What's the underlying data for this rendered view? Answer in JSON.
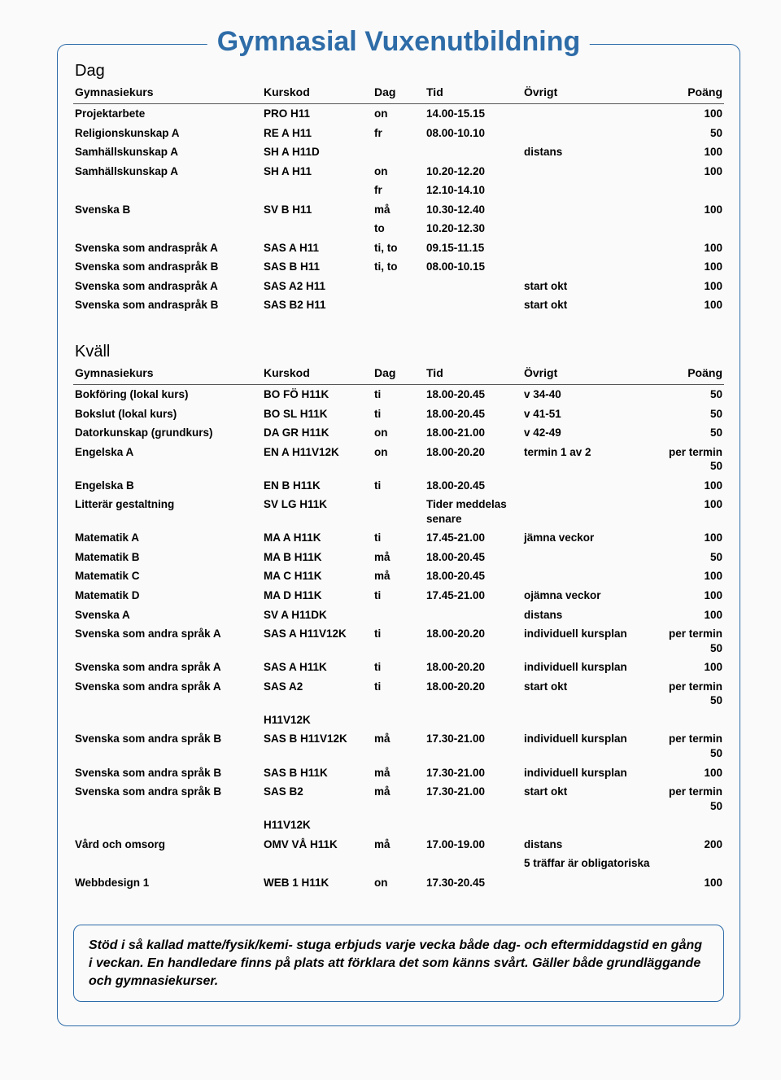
{
  "title": "Gymnasial Vuxenutbildning",
  "col_headers": {
    "kurs": "Gymnasiekurs",
    "kod": "Kurskod",
    "dag": "Dag",
    "tid": "Tid",
    "ovr": "Övrigt",
    "poang": "Poäng"
  },
  "section_dag_label": "Dag",
  "section_kvall_label": "Kväll",
  "dag_rows": [
    {
      "kurs": "Projektarbete",
      "kod": "PRO H11",
      "dag": "on",
      "tid": "14.00-15.15",
      "ovr": "",
      "poang": "100"
    },
    {
      "kurs": "Religionskunskap A",
      "kod": "RE A H11",
      "dag": "fr",
      "tid": "08.00-10.10",
      "ovr": "",
      "poang": "50"
    },
    {
      "kurs": "Samhällskunskap A",
      "kod": "SH A H11D",
      "dag": "",
      "tid": "",
      "ovr": "distans",
      "poang": "100"
    },
    {
      "kurs": "Samhällskunskap A",
      "kod": "SH A H11",
      "dag": "on",
      "tid": "10.20-12.20",
      "ovr": "",
      "poang": "100"
    },
    {
      "kurs": "",
      "kod": "",
      "dag": "fr",
      "tid": "12.10-14.10",
      "ovr": "",
      "poang": ""
    },
    {
      "kurs": "Svenska B",
      "kod": "SV B H11",
      "dag": "må",
      "tid": "10.30-12.40",
      "ovr": "",
      "poang": "100"
    },
    {
      "kurs": "",
      "kod": "",
      "dag": "to",
      "tid": "10.20-12.30",
      "ovr": "",
      "poang": ""
    },
    {
      "kurs": "Svenska som andraspråk A",
      "kod": "SAS A H11",
      "dag": "ti, to",
      "tid": "09.15-11.15",
      "ovr": "",
      "poang": "100"
    },
    {
      "kurs": "Svenska som andraspråk B",
      "kod": "SAS B H11",
      "dag": "ti, to",
      "tid": "08.00-10.15",
      "ovr": "",
      "poang": "100"
    },
    {
      "kurs": "Svenska som andraspråk A",
      "kod": "SAS A2 H11",
      "dag": "",
      "tid": "",
      "ovr": "start okt",
      "poang": "100"
    },
    {
      "kurs": "Svenska som andraspråk B",
      "kod": "SAS B2 H11",
      "dag": "",
      "tid": "",
      "ovr": "start okt",
      "poang": "100"
    }
  ],
  "kvall_rows": [
    {
      "kurs": "Bokföring (lokal kurs)",
      "kod": "BO FÖ H11K",
      "dag": "ti",
      "tid": "18.00-20.45",
      "ovr": "v 34-40",
      "poang": "50"
    },
    {
      "kurs": "Bokslut (lokal kurs)",
      "kod": "BO SL H11K",
      "dag": "ti",
      "tid": "18.00-20.45",
      "ovr": "v 41-51",
      "poang": "50"
    },
    {
      "kurs": "Datorkunskap (grundkurs)",
      "kod": "DA GR H11K",
      "dag": "on",
      "tid": "18.00-21.00",
      "ovr": "v 42-49",
      "poang": "50"
    },
    {
      "kurs": "Engelska A",
      "kod": "EN A H11V12K",
      "dag": "on",
      "tid": "18.00-20.20",
      "ovr": "termin 1 av 2",
      "poang": "per termin 50"
    },
    {
      "kurs": "Engelska B",
      "kod": "EN B H11K",
      "dag": "ti",
      "tid": "18.00-20.45",
      "ovr": "",
      "poang": "100"
    },
    {
      "kurs": "Litterär gestaltning",
      "kod": "SV LG H11K",
      "dag": "",
      "tid": "Tider meddelas senare",
      "ovr": "",
      "poang": "100"
    },
    {
      "kurs": "Matematik A",
      "kod": "MA A H11K",
      "dag": "ti",
      "tid": "17.45-21.00",
      "ovr": "jämna veckor",
      "poang": "100"
    },
    {
      "kurs": "Matematik B",
      "kod": "MA B H11K",
      "dag": "må",
      "tid": "18.00-20.45",
      "ovr": "",
      "poang": "50"
    },
    {
      "kurs": "Matematik C",
      "kod": "MA C H11K",
      "dag": "må",
      "tid": "18.00-20.45",
      "ovr": "",
      "poang": "100"
    },
    {
      "kurs": "Matematik D",
      "kod": "MA D H11K",
      "dag": "ti",
      "tid": "17.45-21.00",
      "ovr": "ojämna veckor",
      "poang": "100"
    },
    {
      "kurs": "Svenska A",
      "kod": "SV A H11DK",
      "dag": "",
      "tid": "",
      "ovr": "distans",
      "poang": "100"
    },
    {
      "kurs": "Svenska som andra språk A",
      "kod": "SAS A H11V12K",
      "dag": "ti",
      "tid": "18.00-20.20",
      "ovr": "individuell kursplan",
      "poang": "per termin 50"
    },
    {
      "kurs": "Svenska som andra språk A",
      "kod": "SAS A H11K",
      "dag": "ti",
      "tid": "18.00-20.20",
      "ovr": "individuell kursplan",
      "poang": "100"
    },
    {
      "kurs": "Svenska som andra språk A",
      "kod": "SAS A2",
      "dag": "ti",
      "tid": "18.00-20.20",
      "ovr": "start okt",
      "poang": "per termin 50"
    },
    {
      "kurs": "",
      "kod": "H11V12K",
      "dag": "",
      "tid": "",
      "ovr": "",
      "poang": ""
    },
    {
      "kurs": "Svenska som andra språk B",
      "kod": "SAS B H11V12K",
      "dag": "må",
      "tid": "17.30-21.00",
      "ovr": "individuell kursplan",
      "poang": "per termin 50"
    },
    {
      "kurs": "Svenska som andra språk B",
      "kod": "SAS B H11K",
      "dag": "må",
      "tid": "17.30-21.00",
      "ovr": "individuell kursplan",
      "poang": "100"
    },
    {
      "kurs": "Svenska som andra språk B",
      "kod": "SAS B2",
      "dag": "må",
      "tid": "17.30-21.00",
      "ovr": "start okt",
      "poang": "per termin 50"
    },
    {
      "kurs": "",
      "kod": "H11V12K",
      "dag": "",
      "tid": "",
      "ovr": "",
      "poang": ""
    },
    {
      "kurs": "Vård och omsorg",
      "kod": "OMV VÅ H11K",
      "dag": "må",
      "tid": "17.00-19.00",
      "ovr": "distans",
      "poang": "200"
    },
    {
      "kurs": "",
      "kod": "",
      "dag": "",
      "tid": "",
      "ovr": "5 träffar är obligatoriska",
      "poang": ""
    },
    {
      "kurs": "Webbdesign 1",
      "kod": "WEB 1 H11K",
      "dag": "on",
      "tid": "17.30-20.45",
      "ovr": "",
      "poang": "100"
    }
  ],
  "note": "Stöd i så kallad matte/fysik/kemi- stuga erbjuds varje vecka både dag- och eftermiddagstid en gång i veckan. En handledare finns på plats att förklara det som känns svårt. Gäller både grundläggande och gymnasiekurser.",
  "colors": {
    "accent": "#2e6ca8",
    "text": "#000000",
    "background": "#fafafa"
  }
}
